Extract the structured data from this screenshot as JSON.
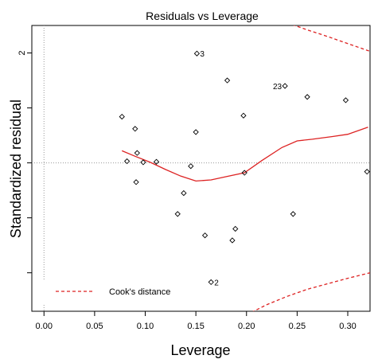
{
  "chart_data": {
    "type": "scatter",
    "title": "Residuals vs Leverage",
    "xlabel": "Leverage",
    "ylabel": "Standardized residual",
    "xlim": [
      -0.012,
      0.322
    ],
    "ylim": [
      -2.7,
      2.5
    ],
    "x_ticks": [
      0.0,
      0.05,
      0.1,
      0.15,
      0.2,
      0.25,
      0.3
    ],
    "x_tick_labels": [
      "0.00",
      "0.05",
      "0.10",
      "0.15",
      "0.20",
      "0.25",
      "0.30"
    ],
    "y_ticks": [
      -2,
      -1,
      0,
      1,
      2
    ],
    "y_tick_labels": [
      "",
      "",
      "",
      "",
      "2"
    ],
    "grid": false,
    "reference_lines": {
      "y": 0,
      "x": 0,
      "style": "dotted gray"
    },
    "points": [
      {
        "x": 0.077,
        "y": 0.84
      },
      {
        "x": 0.082,
        "y": 0.03
      },
      {
        "x": 0.09,
        "y": 0.62
      },
      {
        "x": 0.092,
        "y": 0.18
      },
      {
        "x": 0.098,
        "y": 0.01
      },
      {
        "x": 0.091,
        "y": -0.35
      },
      {
        "x": 0.111,
        "y": 0.02
      },
      {
        "x": 0.132,
        "y": -0.93
      },
      {
        "x": 0.138,
        "y": -0.55
      },
      {
        "x": 0.145,
        "y": -0.06
      },
      {
        "x": 0.15,
        "y": 0.56
      },
      {
        "x": 0.151,
        "y": 1.99
      },
      {
        "x": 0.159,
        "y": -1.32
      },
      {
        "x": 0.165,
        "y": -2.17
      },
      {
        "x": 0.181,
        "y": 1.5
      },
      {
        "x": 0.186,
        "y": -1.41
      },
      {
        "x": 0.189,
        "y": -1.2
      },
      {
        "x": 0.197,
        "y": 0.86
      },
      {
        "x": 0.198,
        "y": -0.18
      },
      {
        "x": 0.238,
        "y": 1.4
      },
      {
        "x": 0.246,
        "y": -0.93
      },
      {
        "x": 0.26,
        "y": 1.2
      },
      {
        "x": 0.298,
        "y": 1.14
      },
      {
        "x": 0.319,
        "y": -0.16
      }
    ],
    "point_labels": [
      {
        "x": 0.151,
        "y": 1.99,
        "text": "3",
        "side": "right"
      },
      {
        "x": 0.238,
        "y": 1.4,
        "text": "23",
        "side": "left"
      },
      {
        "x": 0.165,
        "y": -2.17,
        "text": "2",
        "side": "right"
      }
    ],
    "smoother": {
      "name": "smoother",
      "color": "#dd2222",
      "x": [
        0.077,
        0.09,
        0.105,
        0.12,
        0.135,
        0.15,
        0.165,
        0.18,
        0.198,
        0.215,
        0.235,
        0.25,
        0.265,
        0.285,
        0.3,
        0.32
      ],
      "y": [
        0.22,
        0.12,
        0.01,
        -0.12,
        -0.24,
        -0.33,
        -0.31,
        -0.25,
        -0.18,
        0.04,
        0.28,
        0.4,
        0.43,
        0.48,
        0.52,
        0.65
      ]
    },
    "cooks_distance": {
      "color": "#dd2222",
      "upper": {
        "x": [
          0.24,
          0.26,
          0.28,
          0.3,
          0.322
        ],
        "y": [
          2.55,
          2.42,
          2.3,
          2.17,
          2.03
        ]
      },
      "lower": {
        "x": [
          0.205,
          0.22,
          0.24,
          0.26,
          0.28,
          0.3,
          0.322
        ],
        "y": [
          -2.72,
          -2.58,
          -2.43,
          -2.3,
          -2.2,
          -2.1,
          -2.0
        ]
      }
    },
    "legend": {
      "position": "bottom-left",
      "entries": [
        {
          "label": "Cook's distance",
          "style": "dashed",
          "color": "#dd2222"
        }
      ]
    }
  }
}
